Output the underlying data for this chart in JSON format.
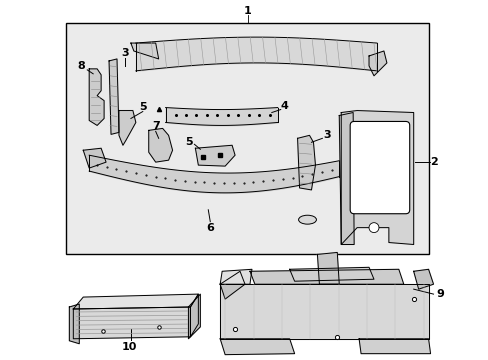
{
  "bg": "#ffffff",
  "box_fill": "#e8e8e8",
  "part_fill": "#d4d4d4",
  "part_stroke": "#000000",
  "fig_w": 4.89,
  "fig_h": 3.6,
  "dpi": 100
}
